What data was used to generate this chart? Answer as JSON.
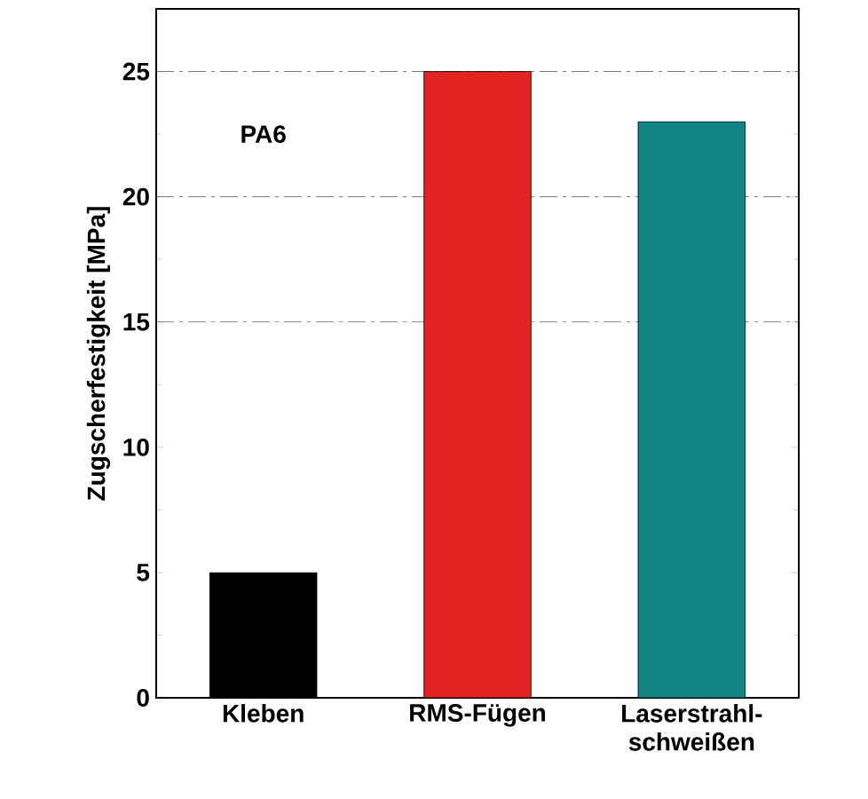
{
  "chart_data": {
    "type": "bar",
    "ylabel": "Zugscherfestigkeit [MPa]",
    "categories": [
      "Kleben",
      "RMS-Fügen",
      "Laserstrahl-schweißen"
    ],
    "values": [
      5,
      25,
      23
    ],
    "colors": [
      "#000000",
      "#e32322",
      "#138484"
    ],
    "ylim": [
      0,
      27.5
    ],
    "yticks": [
      0,
      5,
      10,
      15,
      20,
      25
    ],
    "ref_lines": [
      {
        "axis": "y",
        "value": 15,
        "line_style": "dashed",
        "color": "#555555"
      },
      {
        "axis": "y",
        "value": 20,
        "line_style": "dashed",
        "color": "#555555"
      },
      {
        "axis": "y",
        "value": 25,
        "line_style": "dashed",
        "color": "#555555"
      }
    ],
    "annotations": [
      "PA6"
    ]
  }
}
